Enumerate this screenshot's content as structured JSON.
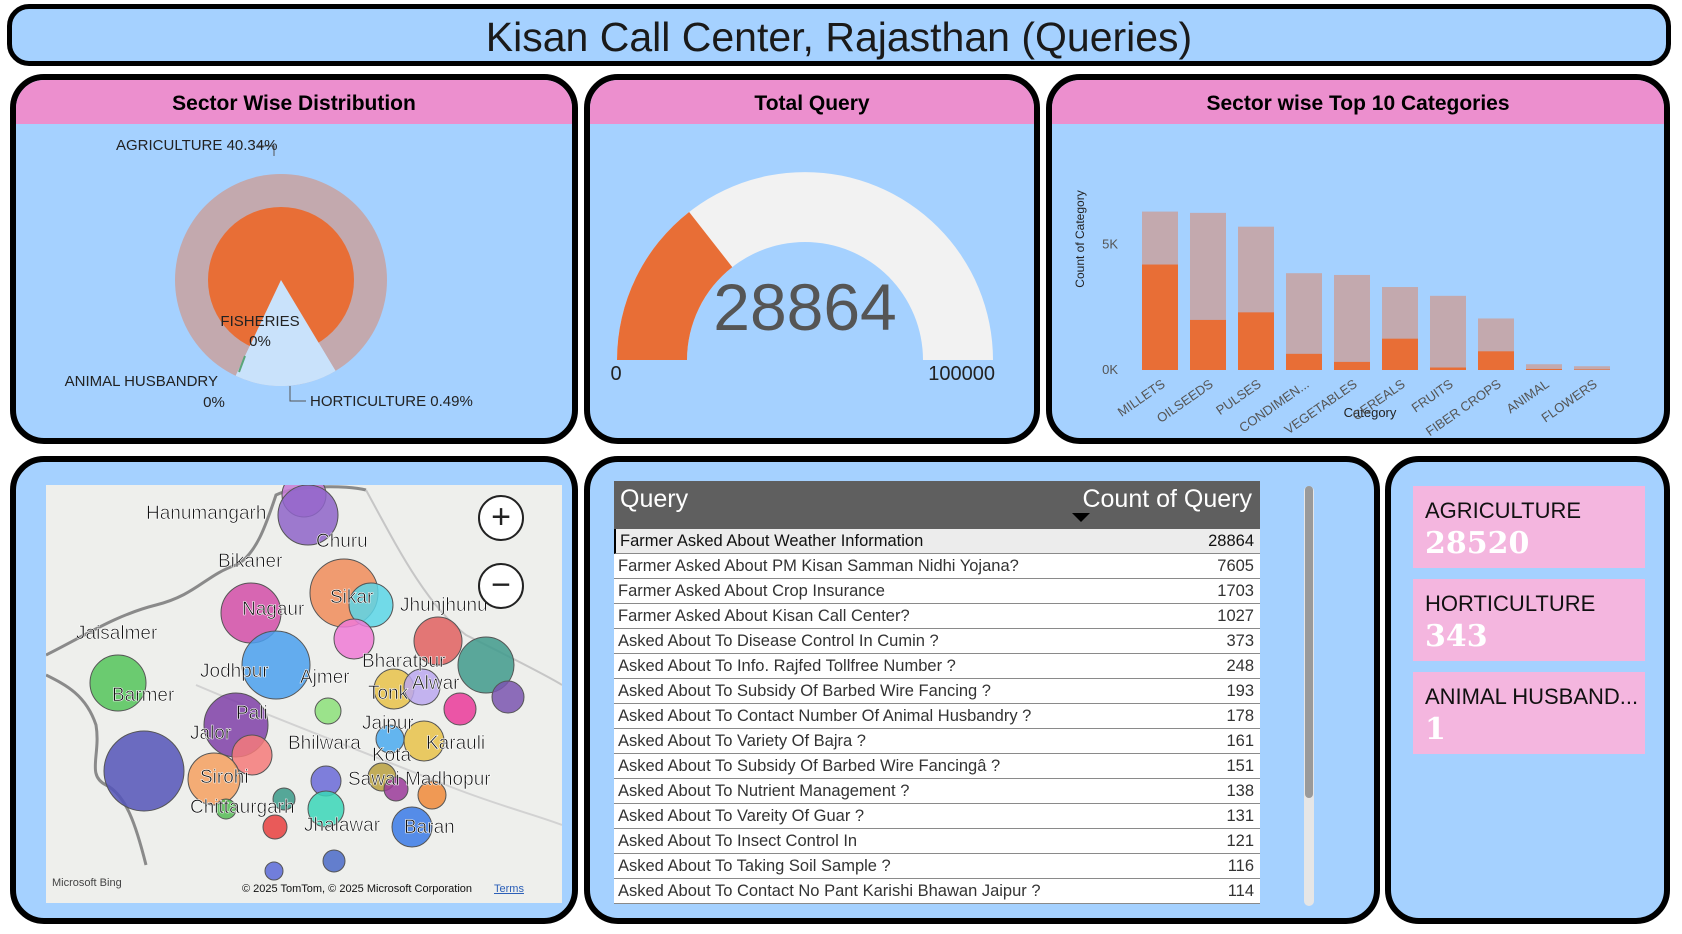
{
  "title": "Kisan Call Center, Rajasthan (Queries)",
  "sector_panel": {
    "title": "Sector Wise Distribution",
    "labels": {
      "agriculture": "AGRICULTURE 40.34%",
      "fisheries": "FISHERIES",
      "fisheries_pct": "0%",
      "animal": "ANIMAL HUSBANDRY",
      "animal_pct": "0%",
      "horticulture": "HORTICULTURE 0.49%"
    }
  },
  "total_panel": {
    "title": "Total Query",
    "value": "28864",
    "min": "0",
    "max": "100000",
    "fraction": 0.28864
  },
  "top10_panel": {
    "title": "Sector wise Top 10 Categories"
  },
  "chart_data": {
    "type": "bar",
    "title": "Sector wise Top 10 Categories",
    "xlabel": "Category",
    "ylabel": "Count of Category",
    "categories": [
      "MILLETS",
      "OILSEEDS",
      "PULSES",
      "CONDIMEN...",
      "VEGETABLES",
      "CEREALS",
      "FRUITS",
      "FIBER CROPS",
      "ANIMAL",
      "FLOWERS"
    ],
    "series": [
      {
        "color": "#e86e36",
        "values": [
          4200,
          2000,
          2300,
          650,
          330,
          1250,
          100,
          750,
          50,
          30
        ]
      },
      {
        "color": "#c3a9ae",
        "values": [
          2100,
          4250,
          3400,
          3200,
          3450,
          2050,
          2850,
          1300,
          180,
          120
        ]
      }
    ],
    "yticks": [
      "0K",
      "5K"
    ],
    "ylim": [
      0,
      7000
    ],
    "legend": "none"
  },
  "map": {
    "places": [
      "Hanumangarh",
      "Churu",
      "Bikaner",
      "Sikar",
      "Jhunjhunu",
      "Nagaur",
      "Jaisalmer",
      "Jodhpur",
      "Ajmer",
      "Bharatpur",
      "Alwar",
      "Tonk",
      "Barmer",
      "Pali",
      "Jaipur",
      "Jalor",
      "Karauli",
      "Bhilwara",
      "Kota",
      "Sirohi",
      "Sawai Madhopur",
      "Chittaurgarh",
      "Jhalawar",
      "Baran"
    ],
    "attribution": "© 2025 TomTom, © 2025 Microsoft Corporation",
    "terms": "Terms",
    "brand": "Microsoft Bing",
    "zoom_in": "+",
    "zoom_out": "−"
  },
  "query_table": {
    "headers": {
      "query": "Query",
      "count": "Count of Query"
    },
    "rows": [
      {
        "q": "Farmer Asked About Weather Information",
        "c": "28864"
      },
      {
        "q": "Farmer Asked About PM Kisan Samman Nidhi Yojana?",
        "c": "7605"
      },
      {
        "q": "Farmer Asked About Crop Insurance",
        "c": "1703"
      },
      {
        "q": "Farmer Asked About Kisan Call Center?",
        "c": "1027"
      },
      {
        "q": "Asked About To Disease Control In Cumin ?",
        "c": "373"
      },
      {
        "q": "Asked About To Info. Rajfed Tollfree Number ?",
        "c": "248"
      },
      {
        "q": "Asked About To Subsidy Of Barbed Wire Fancing ?",
        "c": "193"
      },
      {
        "q": "Asked About To Contact Number Of Animal Husbandry ?",
        "c": "178"
      },
      {
        "q": "Asked About To Variety Of Bajra ?",
        "c": "161"
      },
      {
        "q": "Asked About To Subsidy Of Barbed Wire Fancingâ ?",
        "c": "151"
      },
      {
        "q": "Asked About To Nutrient Management ?",
        "c": "138"
      },
      {
        "q": "Asked About To Vareity Of Guar ?",
        "c": "131"
      },
      {
        "q": "Asked About To Insect Control In",
        "c": "121"
      },
      {
        "q": "Asked About To Taking Soil Sample ?",
        "c": "116"
      },
      {
        "q": "Asked About To Contact No Pant Karishi Bhawan Jaipur ?",
        "c": "114"
      }
    ]
  },
  "cards": [
    {
      "label": "AGRICULTURE",
      "value": "28520"
    },
    {
      "label": "HORTICULTURE",
      "value": "343"
    },
    {
      "label": "ANIMAL HUSBAND...",
      "value": "1"
    }
  ]
}
